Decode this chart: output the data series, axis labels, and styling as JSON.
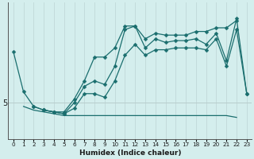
{
  "xlabel": "Humidex (Indice chaleur)",
  "background_color": "#d4eeed",
  "grid_color_v": "#c0d8d8",
  "grid_color_h": "#b8cccc",
  "line_color": "#1a6e6e",
  "xlim": [
    -0.5,
    23.5
  ],
  "ylim": [
    3.0,
    10.5
  ],
  "ytick_val": 5.0,
  "xtick_labels": [
    "0",
    "1",
    "2",
    "3",
    "4",
    "5",
    "6",
    "7",
    "8",
    "9",
    "10",
    "11",
    "12",
    "13",
    "14",
    "15",
    "16",
    "17",
    "18",
    "19",
    "20",
    "21",
    "22",
    "23"
  ],
  "series": [
    {
      "x": [
        0,
        1,
        2,
        3,
        4,
        5,
        6,
        7,
        8,
        9,
        10,
        11,
        12,
        13,
        14,
        15,
        16,
        17,
        18,
        19,
        20,
        21,
        22
      ],
      "y": [
        7.8,
        5.6,
        4.8,
        4.6,
        4.5,
        4.5,
        5.2,
        6.2,
        7.5,
        7.5,
        8.0,
        9.2,
        9.2,
        8.5,
        8.8,
        8.7,
        8.7,
        8.7,
        8.9,
        8.9,
        9.1,
        9.1,
        9.5
      ],
      "marker": "D",
      "markersize": 2.5
    },
    {
      "x": [
        3,
        4,
        5,
        6,
        7,
        8,
        9,
        10,
        11,
        12,
        13,
        14,
        15,
        16,
        17,
        18,
        19,
        20,
        21,
        22,
        23
      ],
      "y": [
        4.6,
        4.5,
        4.4,
        5.0,
        5.9,
        6.2,
        6.0,
        7.0,
        9.0,
        9.2,
        8.0,
        8.5,
        8.3,
        8.4,
        8.4,
        8.5,
        8.2,
        8.8,
        7.3,
        9.6,
        5.5
      ],
      "marker": "D",
      "markersize": 2.5
    },
    {
      "x": [
        2,
        3,
        4,
        5,
        6,
        7,
        8,
        9,
        10,
        11,
        12,
        13,
        14,
        15,
        16,
        17,
        18,
        19,
        20,
        21,
        22,
        23
      ],
      "y": [
        4.8,
        4.6,
        4.5,
        4.4,
        4.7,
        5.5,
        5.5,
        5.3,
        6.2,
        7.6,
        8.2,
        7.6,
        7.9,
        7.9,
        8.0,
        8.0,
        8.0,
        7.9,
        8.5,
        7.0,
        9.0,
        5.5
      ],
      "marker": "D",
      "markersize": 2.5
    },
    {
      "x": [
        1,
        2,
        3,
        4,
        5,
        6,
        7,
        8,
        9,
        10,
        11,
        12,
        13,
        14,
        15,
        16,
        17,
        18,
        19,
        20,
        21,
        22
      ],
      "y": [
        4.8,
        4.6,
        4.5,
        4.4,
        4.3,
        4.3,
        4.3,
        4.3,
        4.3,
        4.3,
        4.3,
        4.3,
        4.3,
        4.3,
        4.3,
        4.3,
        4.3,
        4.3,
        4.3,
        4.3,
        4.3,
        4.2
      ],
      "marker": null,
      "markersize": 0
    }
  ]
}
